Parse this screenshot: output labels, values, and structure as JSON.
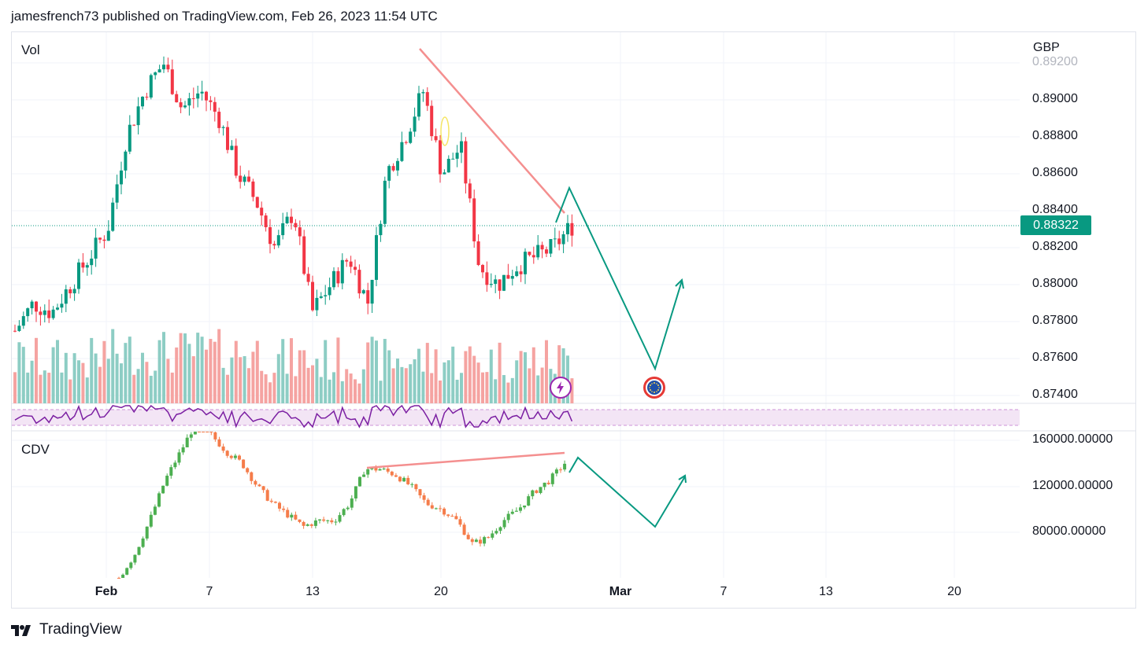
{
  "header": {
    "publisher_line": "jamesfrench73 published on TradingView.com, Feb 26, 2023 11:54 UTC"
  },
  "footer": {
    "brand": "TradingView",
    "logo_icon": "tradingview-logo-icon"
  },
  "colors": {
    "up": "#089981",
    "down": "#f23645",
    "vol_up": "#8dcdc4",
    "vol_down": "#f5a3a1",
    "rsi": "#7b1fa2",
    "rsi_bg": "#f3e5f5",
    "trend_red": "#f48f8f",
    "proj_green": "#089981",
    "cdv_up": "#4caf50",
    "cdv_down": "#f57c4a"
  },
  "price_pane": {
    "label": "Vol",
    "currency": "GBP",
    "current_price": "0.88322",
    "y_ticks": [
      "0.89200",
      "0.89000",
      "0.88800",
      "0.88600",
      "0.88400",
      "0.88200",
      "0.88000",
      "0.87800",
      "0.87600",
      "0.87400"
    ]
  },
  "cdv_pane": {
    "label": "CDV",
    "y_ticks": [
      "160000.00000",
      "120000.00000",
      "80000.00000"
    ]
  },
  "x_axis": {
    "ticks": [
      "Feb",
      "7",
      "13",
      "20",
      "Mar",
      "7",
      "13",
      "20"
    ]
  },
  "events": {
    "lightning_icon": "lightning-event-icon",
    "eu_flag_icon": "eu-flag-event-icon"
  },
  "chart_data": [
    {
      "type": "line",
      "description_series": "EURGBP-style daily candles with volume",
      "x": [
        "Jan 27",
        "Jan 28",
        "Jan 29",
        "Jan 30",
        "Jan 31",
        "Feb 1",
        "Feb 2",
        "Feb 3",
        "Feb 4",
        "Feb 5",
        "Feb 6",
        "Feb 7",
        "Feb 8",
        "Feb 9",
        "Feb 10",
        "Feb 11",
        "Feb 12",
        "Feb 13",
        "Feb 14",
        "Feb 15",
        "Feb 16",
        "Feb 17",
        "Feb 18",
        "Feb 19",
        "Feb 20",
        "Feb 21",
        "Feb 22",
        "Feb 23",
        "Feb 24",
        "Feb 25",
        "Feb 26"
      ],
      "y": [
        0.8775,
        0.879,
        0.8785,
        0.88,
        0.8815,
        0.883,
        0.888,
        0.8905,
        0.892,
        0.8895,
        0.8905,
        0.889,
        0.886,
        0.8845,
        0.882,
        0.884,
        0.8785,
        0.88,
        0.8815,
        0.879,
        0.886,
        0.888,
        0.8905,
        0.886,
        0.8875,
        0.881,
        0.88,
        0.881,
        0.8815,
        0.882,
        0.8832
      ],
      "ylim": [
        0.8735,
        0.8925
      ]
    },
    {
      "type": "line",
      "series": [
        {
          "name": "CDV",
          "values": [
            40000,
            60000,
            90000,
            125000,
            150000,
            175000,
            165000,
            150000,
            140000,
            120000,
            105000,
            95000,
            85000,
            90000,
            90000,
            105000,
            135000,
            135000,
            130000,
            120000,
            105000,
            100000,
            90000,
            70000,
            75000,
            90000,
            100000,
            115000,
            125000,
            140000
          ]
        }
      ],
      "ylim": [
        50000,
        170000
      ]
    }
  ]
}
